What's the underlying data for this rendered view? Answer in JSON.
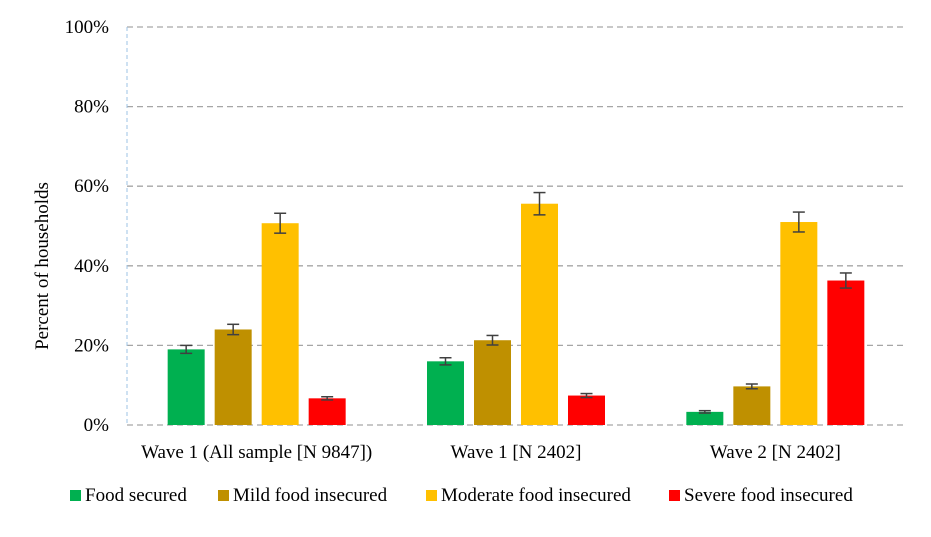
{
  "chart_data": {
    "type": "bar",
    "title": "",
    "xlabel": "",
    "ylabel": "Percent of households",
    "ylim": [
      0,
      100
    ],
    "yticks": [
      "0%",
      "20%",
      "40%",
      "60%",
      "80%",
      "100%"
    ],
    "grid": true,
    "legend_position": "bottom",
    "categories": [
      "Wave 1 (All sample [N 9847])",
      "Wave 1 [N 2402]",
      "Wave 2 [N 2402]"
    ],
    "series": [
      {
        "name": "Food secured",
        "color": "#00b050",
        "values": [
          19.0,
          16.0,
          3.3
        ],
        "err": [
          1.0,
          0.9,
          0.3
        ]
      },
      {
        "name": "Mild food insecured",
        "color": "#bf9000",
        "values": [
          24.0,
          21.3,
          9.7
        ],
        "err": [
          1.3,
          1.2,
          0.6
        ]
      },
      {
        "name": "Moderate food insecured",
        "color": "#ffc000",
        "values": [
          50.7,
          55.6,
          51.0
        ],
        "err": [
          2.5,
          2.8,
          2.5
        ]
      },
      {
        "name": "Severe food insecured",
        "color": "#ff0000",
        "values": [
          6.7,
          7.4,
          36.3
        ],
        "err": [
          0.4,
          0.5,
          1.9
        ]
      }
    ]
  }
}
